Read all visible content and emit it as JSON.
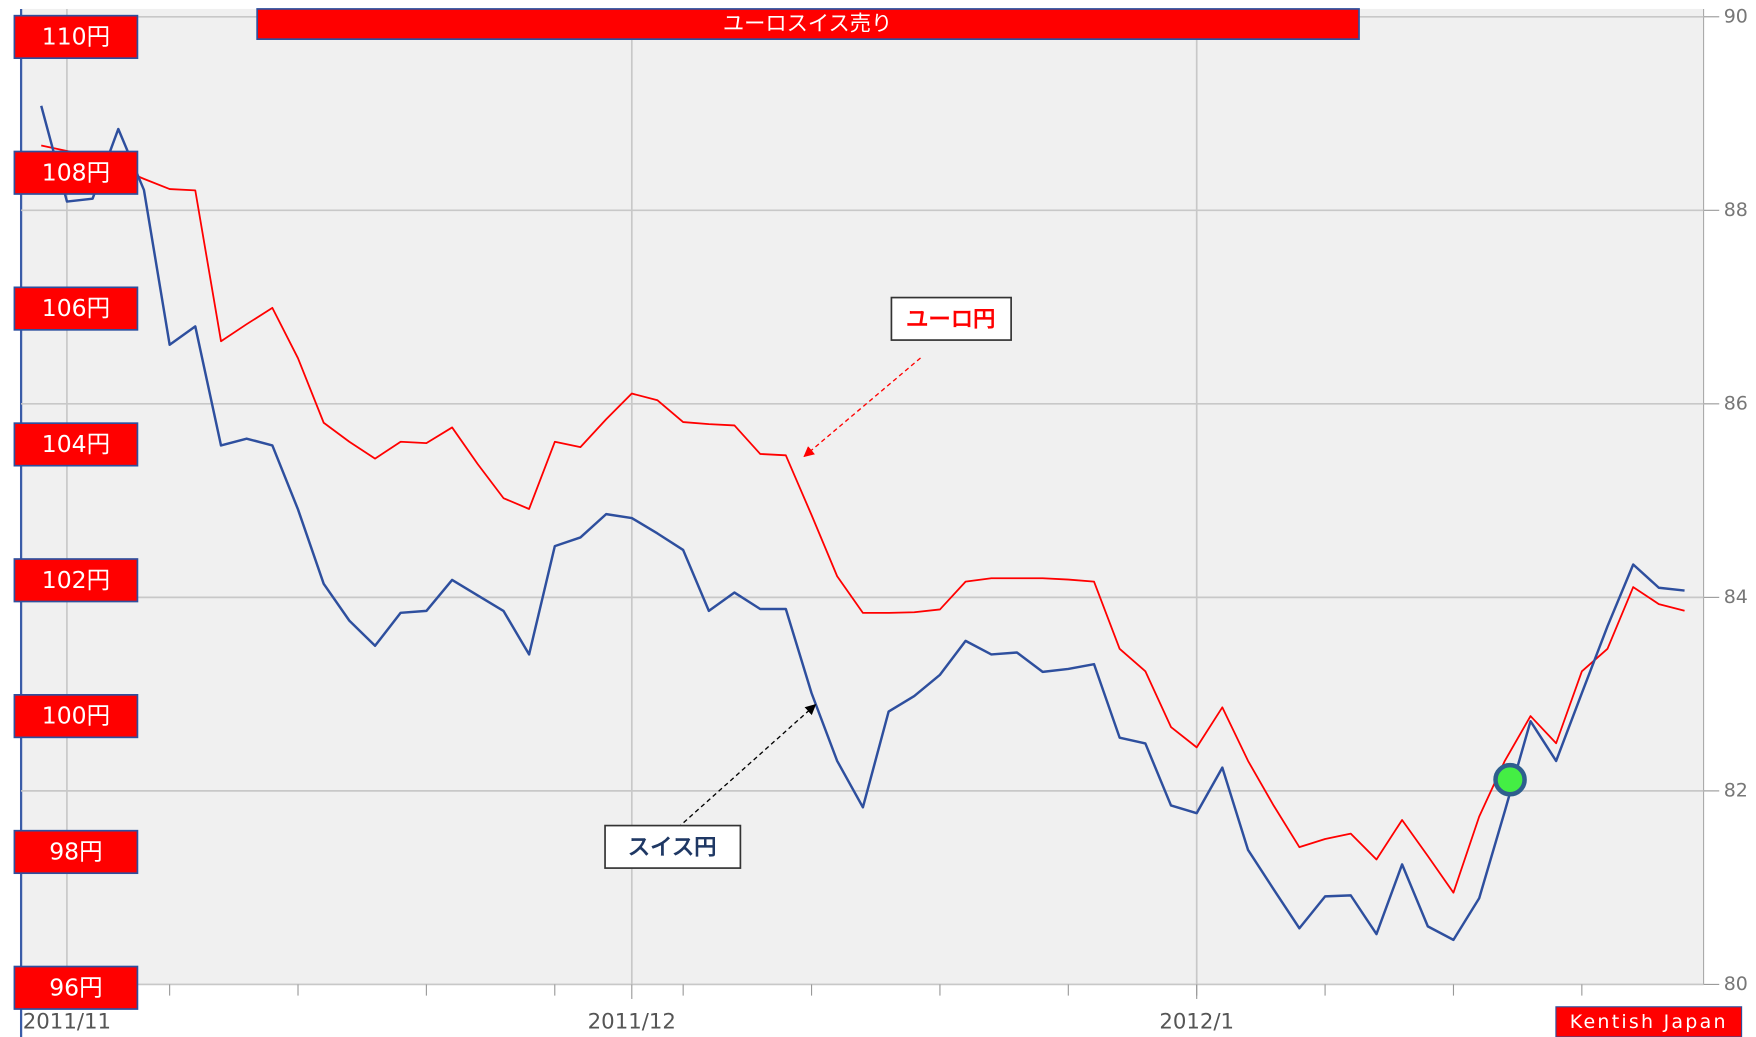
{
  "chart_data": {
    "type": "line",
    "title": "ユーロスイス売り",
    "credit": "Kentish Japan",
    "categories": [
      null,
      "2011/11",
      null,
      null,
      null,
      null,
      null,
      null,
      null,
      null,
      null,
      null,
      null,
      null,
      null,
      null,
      null,
      null,
      null,
      null,
      null,
      null,
      null,
      "2011/12",
      null,
      null,
      null,
      null,
      null,
      null,
      null,
      null,
      null,
      null,
      null,
      null,
      null,
      null,
      null,
      null,
      null,
      null,
      null,
      null,
      null,
      "2012/1",
      null,
      null,
      null,
      null,
      null,
      null,
      null,
      null,
      null,
      null,
      null,
      null,
      null,
      null,
      null,
      null,
      null,
      null,
      null
    ],
    "series": [
      {
        "name": "ユーロ円",
        "color": "#ff0000",
        "axis": "y",
        "values": [
          108.4,
          108.32,
          108.24,
          108.07,
          107.91,
          107.76,
          107.74,
          105.52,
          105.77,
          106.01,
          105.27,
          104.32,
          104.04,
          103.79,
          104.04,
          104.02,
          104.25,
          103.71,
          103.21,
          103.05,
          104.04,
          103.96,
          104.37,
          104.75,
          104.65,
          104.33,
          104.3,
          104.28,
          103.86,
          103.84,
          102.96,
          102.06,
          101.52,
          101.52,
          101.53,
          101.57,
          101.98,
          102.03,
          102.03,
          102.03,
          102.01,
          101.98,
          100.99,
          100.66,
          99.84,
          99.54,
          100.13,
          99.34,
          98.68,
          98.07,
          98.19,
          98.27,
          97.89,
          98.47,
          97.94,
          97.4,
          98.52,
          99.34,
          100.0,
          99.6,
          100.66,
          100.99,
          101.9,
          101.65,
          101.55
        ]
      },
      {
        "name": "スイス円",
        "color": "#2e4f9e",
        "axis": "y2",
        "values": [
          89.08,
          88.09,
          88.12,
          88.84,
          88.21,
          86.61,
          86.8,
          85.57,
          85.64,
          85.57,
          84.91,
          84.14,
          83.76,
          83.5,
          83.84,
          83.86,
          84.18,
          84.02,
          83.86,
          83.41,
          84.53,
          84.62,
          84.86,
          84.82,
          84.66,
          84.49,
          83.86,
          84.05,
          83.88,
          83.88,
          83.01,
          82.31,
          81.83,
          82.82,
          82.98,
          83.2,
          83.55,
          83.41,
          83.43,
          83.23,
          83.26,
          83.31,
          82.55,
          82.49,
          81.85,
          81.77,
          82.24,
          81.39,
          80.98,
          80.58,
          80.91,
          80.92,
          80.52,
          81.24,
          80.6,
          80.46,
          80.89,
          81.79,
          82.72,
          82.31,
          83.01,
          83.7,
          84.34,
          84.1,
          84.07
        ]
      }
    ],
    "ylim": [
      96,
      110
    ],
    "yticks": [
      {
        "value": 110,
        "label": "110円"
      },
      {
        "value": 108,
        "label": "108円"
      },
      {
        "value": 106,
        "label": "106円"
      },
      {
        "value": 104,
        "label": "104円"
      },
      {
        "value": 102,
        "label": "102円"
      },
      {
        "value": 100,
        "label": "100円"
      },
      {
        "value": 98,
        "label": "98円"
      },
      {
        "value": 96,
        "label": "96円"
      }
    ],
    "y2lim": [
      80,
      90
    ],
    "y2ticks": [
      90,
      88,
      86,
      84,
      82,
      80
    ],
    "grid": true
  }
}
